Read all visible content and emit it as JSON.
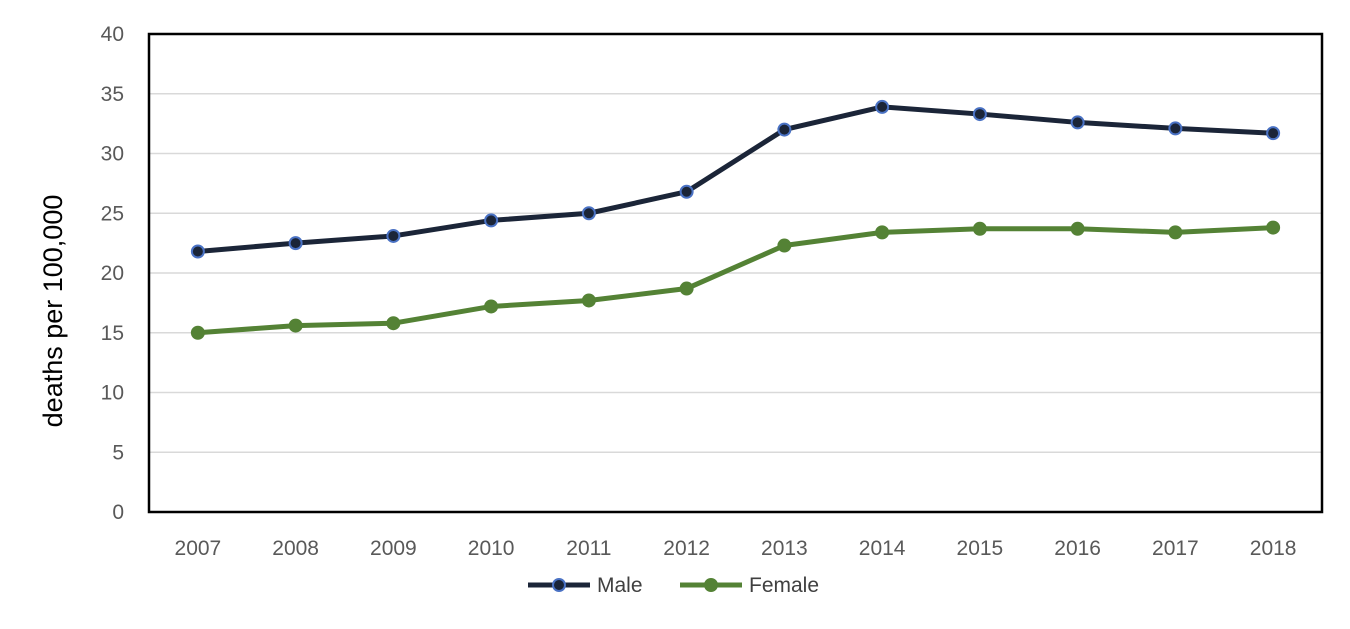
{
  "chart_data": {
    "type": "line",
    "title": "",
    "xlabel": "",
    "ylabel": "deaths per 100,000",
    "ylim": [
      0,
      40
    ],
    "yticks": [
      "0",
      "5",
      "10",
      "15",
      "20",
      "25",
      "30",
      "35",
      "40"
    ],
    "grid": "horizontal",
    "legend_position": "bottom",
    "categories": [
      "2007",
      "2008",
      "2009",
      "2010",
      "2011",
      "2012",
      "2013",
      "2014",
      "2015",
      "2016",
      "2017",
      "2018"
    ],
    "series": [
      {
        "name": "Male",
        "color": "#1b2538",
        "marker_edge_color": "#4a72c4",
        "values": [
          21.8,
          22.5,
          23.1,
          24.4,
          25.0,
          26.8,
          32.0,
          33.9,
          33.3,
          32.6,
          32.1,
          31.7
        ]
      },
      {
        "name": "Female",
        "color": "#548235",
        "marker_edge_color": "#548235",
        "values": [
          15.0,
          15.6,
          15.8,
          17.2,
          17.7,
          18.7,
          22.3,
          23.4,
          23.7,
          23.7,
          23.4,
          23.8
        ]
      }
    ]
  }
}
